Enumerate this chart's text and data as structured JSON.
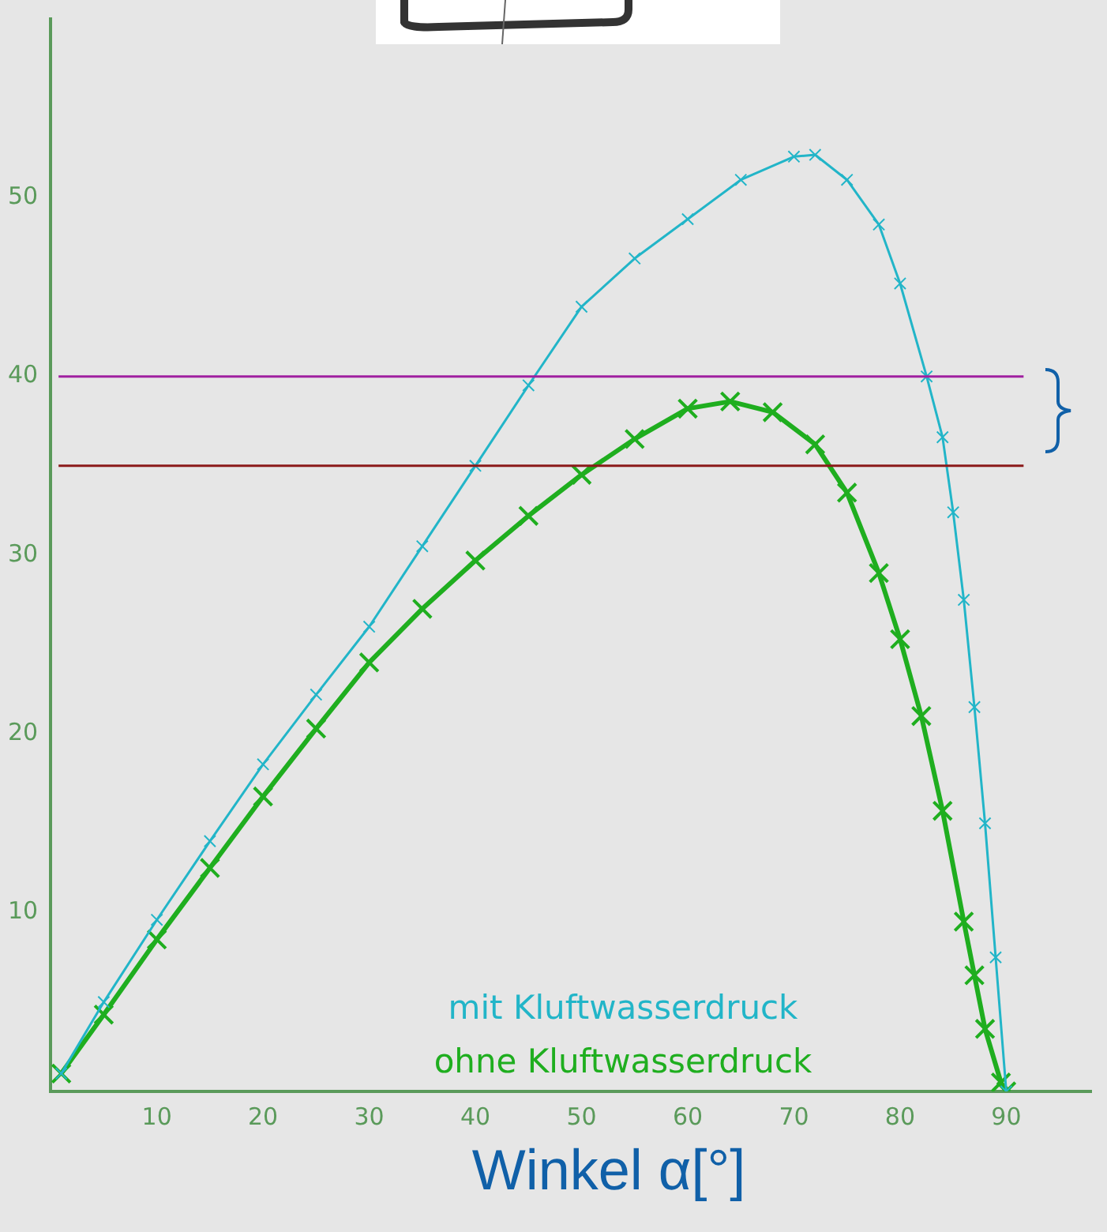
{
  "chart_data": {
    "type": "line",
    "xlabel": "Winkel α[°]",
    "xlim": [
      0,
      98
    ],
    "ylim": [
      0,
      60
    ],
    "xticks": [
      10,
      20,
      30,
      40,
      50,
      60,
      70,
      80,
      90
    ],
    "yticks": [
      10,
      20,
      30,
      40,
      50
    ],
    "grid": false,
    "legend": "bottom right",
    "marker": "cross",
    "line_style": "solid",
    "series": [
      {
        "name": "mit Kluftwasserdruck",
        "color": "#22b5c8",
        "x": [
          1,
          5,
          10,
          15,
          20,
          25,
          30,
          35,
          40,
          45,
          50,
          55,
          60,
          65,
          70,
          72,
          75,
          78,
          80,
          82.5,
          84,
          85,
          86,
          87,
          88,
          89,
          90
        ],
        "values": [
          1,
          5,
          9.6,
          14,
          18.3,
          22.2,
          26,
          30.5,
          35,
          39.5,
          43.9,
          46.6,
          48.8,
          51,
          52.3,
          52.4,
          51,
          48.5,
          45.2,
          40,
          36.6,
          32.4,
          27.5,
          21.5,
          15,
          7.5,
          0
        ]
      },
      {
        "name": "ohne Kluftwasserdruck",
        "color": "#1fae1f",
        "x": [
          1,
          5,
          10,
          15,
          20,
          25,
          30,
          35,
          40,
          45,
          50,
          55,
          60,
          64,
          68,
          72,
          75,
          78,
          80,
          82,
          84,
          86,
          87,
          88,
          89.5,
          90
        ],
        "values": [
          1,
          4.3,
          8.5,
          12.5,
          16.5,
          20.3,
          24,
          27,
          29.7,
          32.2,
          34.5,
          36.5,
          38.2,
          38.6,
          38,
          36.2,
          33.5,
          29,
          25.3,
          21,
          15.7,
          9.5,
          6.5,
          3.5,
          0.5,
          0
        ]
      }
    ],
    "ref_lines": [
      {
        "axis": "y",
        "value": 40,
        "color": "#a020a0"
      },
      {
        "axis": "y",
        "value": 35,
        "color": "#8b1a1a"
      }
    ]
  }
}
